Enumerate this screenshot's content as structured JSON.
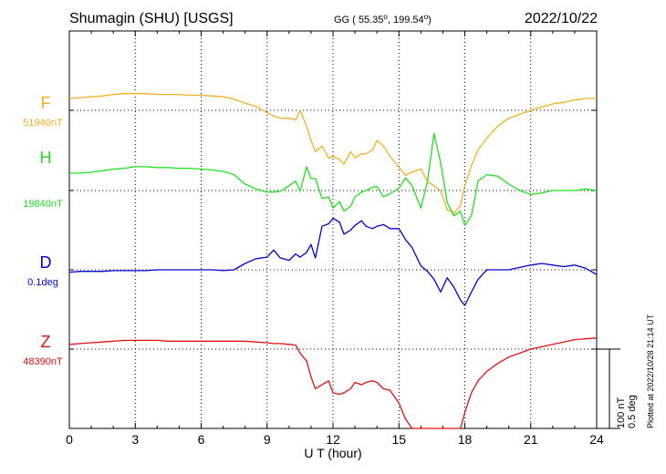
{
  "header": {
    "station": "Shumagin (SHU)  [USGS]",
    "coord_prefix": "GG ( 55.35",
    "coord_middle": ", 199.54",
    "coord_suffix": ")",
    "degree_mark": "o",
    "date": "2022/10/22"
  },
  "footnote": "Plotted at 2022/10/28 21:14 UT",
  "scale": {
    "nt_label": "100 nT",
    "deg_label": "0.5 deg"
  },
  "chart_data": {
    "type": "line",
    "title": "Shumagin (SHU)  [USGS]",
    "xlabel": "U T (hour)",
    "ylabel": "",
    "xlim": [
      0,
      24
    ],
    "x_ticks": [
      0,
      3,
      6,
      9,
      12,
      15,
      18,
      21,
      24
    ],
    "x_tick_labels": [
      "0",
      "3",
      "6",
      "9",
      "12",
      "15",
      "18",
      "21",
      "24"
    ],
    "scale_bar": {
      "value": 100,
      "unit": "nT",
      "angle": 0.5,
      "angle_unit": "deg"
    },
    "grid": true,
    "series": [
      {
        "name": "F",
        "base_label": "51940nT",
        "color": "#f0b020",
        "baseline_nt": 0,
        "x": [
          0,
          0.5,
          1,
          1.5,
          2,
          2.5,
          3,
          3.5,
          4,
          4.5,
          5,
          5.5,
          6,
          6.5,
          7,
          7.5,
          8,
          8.5,
          9,
          9.3,
          9.6,
          10,
          10.3,
          10.5,
          10.8,
          11,
          11.2,
          11.5,
          11.8,
          12,
          12.3,
          12.5,
          12.8,
          13,
          13.3,
          13.5,
          13.8,
          14,
          14.3,
          14.6,
          15,
          15.3,
          15.6,
          16,
          16.3,
          16.6,
          16.9,
          17.2,
          17.5,
          17.8,
          18,
          18.3,
          18.6,
          19,
          19.5,
          20,
          20.5,
          21,
          21.5,
          22,
          22.5,
          23,
          23.5,
          24
        ],
        "y": [
          15,
          16,
          17,
          18,
          20,
          21,
          21,
          21,
          20,
          20,
          20,
          19,
          19,
          18,
          17,
          14,
          9,
          5,
          -3,
          -7,
          -10,
          -10,
          -12,
          0,
          -20,
          -38,
          -52,
          -45,
          -60,
          -58,
          -62,
          -68,
          -52,
          -60,
          -55,
          -55,
          -50,
          -38,
          -45,
          -58,
          -72,
          -82,
          -78,
          -74,
          -90,
          -95,
          -102,
          -125,
          -130,
          -120,
          -95,
          -70,
          -50,
          -35,
          -20,
          -10,
          -5,
          0,
          4,
          8,
          10,
          13,
          15,
          15
        ]
      },
      {
        "name": "H",
        "base_label": "19840nT",
        "color": "#20e020",
        "baseline_nt": 0,
        "x": [
          0,
          0.5,
          1,
          1.5,
          2,
          2.5,
          3,
          3.5,
          4,
          4.5,
          5,
          5.5,
          6,
          6.5,
          7,
          7.5,
          8,
          8.5,
          9,
          9.3,
          9.6,
          10,
          10.3,
          10.5,
          10.8,
          11,
          11.2,
          11.5,
          11.8,
          12,
          12.3,
          12.5,
          12.8,
          13,
          13.3,
          13.5,
          13.8,
          14,
          14.3,
          14.6,
          15,
          15.3,
          15.6,
          16,
          16.3,
          16.6,
          16.9,
          17.2,
          17.5,
          17.8,
          18,
          18.3,
          18.6,
          19,
          19.5,
          20,
          20.5,
          21,
          21.5,
          22,
          22.5,
          23,
          23.5,
          24
        ],
        "y": [
          22,
          22,
          23,
          25,
          27,
          28,
          30,
          30,
          29,
          29,
          28,
          28,
          27,
          26,
          24,
          20,
          8,
          2,
          -2,
          -2,
          -1,
          6,
          12,
          -1,
          30,
          15,
          15,
          -10,
          -8,
          -22,
          -14,
          -26,
          -20,
          -8,
          -2,
          0,
          4,
          5,
          -8,
          -4,
          3,
          16,
          6,
          -22,
          12,
          72,
          35,
          -15,
          -32,
          -26,
          -44,
          -32,
          12,
          20,
          18,
          8,
          0,
          -5,
          -3,
          0,
          0,
          0,
          2,
          0
        ]
      },
      {
        "name": "D",
        "base_label": "0.1deg",
        "color": "#0000d0",
        "baseline_nt": 0,
        "x": [
          0,
          0.5,
          1,
          1.5,
          2,
          2.5,
          3,
          3.5,
          4,
          4.5,
          5,
          5.5,
          6,
          6.5,
          7,
          7.5,
          8,
          8.5,
          9,
          9.3,
          9.6,
          10,
          10.3,
          10.5,
          10.8,
          11,
          11.2,
          11.5,
          11.8,
          12,
          12.3,
          12.5,
          12.8,
          13,
          13.3,
          13.5,
          13.8,
          14,
          14.3,
          14.6,
          15,
          15.3,
          15.6,
          16,
          16.3,
          16.6,
          16.9,
          17.2,
          17.5,
          17.8,
          18,
          18.3,
          18.6,
          19,
          19.5,
          20,
          20.5,
          21,
          21.5,
          22,
          22.5,
          23,
          23.5,
          24
        ],
        "y": [
          -3,
          -2,
          -2,
          -2,
          -1,
          -1,
          -1,
          -1,
          0,
          0,
          0,
          0,
          0,
          0,
          -1,
          0,
          8,
          14,
          16,
          25,
          15,
          12,
          20,
          16,
          22,
          32,
          15,
          55,
          58,
          65,
          60,
          45,
          50,
          56,
          62,
          55,
          52,
          55,
          57,
          52,
          52,
          38,
          28,
          5,
          -2,
          -12,
          -28,
          -10,
          -22,
          -38,
          -45,
          -28,
          -12,
          0,
          0,
          0,
          3,
          6,
          8,
          6,
          4,
          6,
          2,
          -6
        ]
      },
      {
        "name": "Z",
        "base_label": "48390nT",
        "color": "#e01010",
        "baseline_nt": 0,
        "x": [
          0,
          0.5,
          1,
          1.5,
          2,
          2.5,
          3,
          3.5,
          4,
          4.5,
          5,
          5.5,
          6,
          6.5,
          7,
          7.5,
          8,
          8.5,
          9,
          9.3,
          9.6,
          10,
          10.3,
          10.5,
          10.8,
          11,
          11.2,
          11.5,
          11.8,
          12,
          12.3,
          12.5,
          12.8,
          13,
          13.3,
          13.5,
          13.8,
          14,
          14.3,
          14.6,
          15,
          15.3,
          15.6,
          16,
          16.3,
          16.6,
          16.9,
          17.2,
          17.5,
          17.8,
          18,
          18.3,
          18.6,
          19,
          19.5,
          20,
          20.5,
          21,
          21.5,
          22,
          22.5,
          23,
          23.5,
          24
        ],
        "y": [
          6,
          7,
          8,
          9,
          10,
          11,
          11,
          11,
          11,
          10,
          10,
          10,
          10,
          10,
          10,
          10,
          10,
          9,
          8,
          7,
          7,
          6,
          5,
          -5,
          -15,
          -35,
          -50,
          -45,
          -40,
          -55,
          -57,
          -55,
          -50,
          -42,
          -45,
          -42,
          -40,
          -42,
          -50,
          -52,
          -68,
          -88,
          -115,
          -140,
          -170,
          -180,
          -180,
          -170,
          -140,
          -110,
          -80,
          -55,
          -40,
          -28,
          -18,
          -10,
          -5,
          0,
          3,
          6,
          9,
          12,
          13,
          14
        ]
      }
    ]
  }
}
